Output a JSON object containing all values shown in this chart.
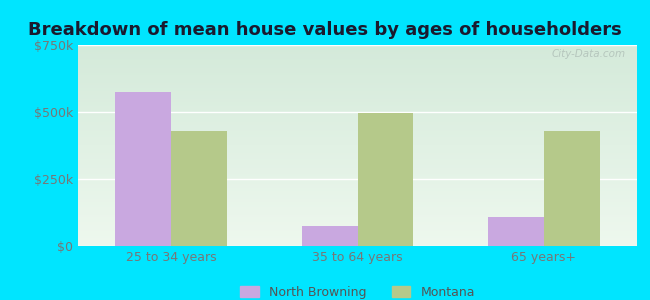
{
  "title": "Breakdown of mean house values by ages of householders",
  "categories": [
    "25 to 34 years",
    "35 to 64 years",
    "65 years+"
  ],
  "north_browning": [
    575000,
    75000,
    110000
  ],
  "montana": [
    430000,
    495000,
    430000
  ],
  "ylim": [
    0,
    750000
  ],
  "yticks": [
    0,
    250000,
    500000,
    750000
  ],
  "ytick_labels": [
    "$0",
    "$250k",
    "$500k",
    "$750k"
  ],
  "bar_width": 0.3,
  "north_browning_color": "#c9a8e0",
  "montana_color": "#b5c98a",
  "background_outer": "#00e5ff",
  "background_inner_top": "#d4eada",
  "background_inner_bottom": "#eef8ee",
  "grid_color": "#ffffff",
  "title_fontsize": 13,
  "tick_fontsize": 9,
  "legend_fontsize": 9,
  "legend_label_nb": "North Browning",
  "legend_label_mt": "Montana",
  "watermark": "City-Data.com",
  "title_color": "#1a1a2e"
}
